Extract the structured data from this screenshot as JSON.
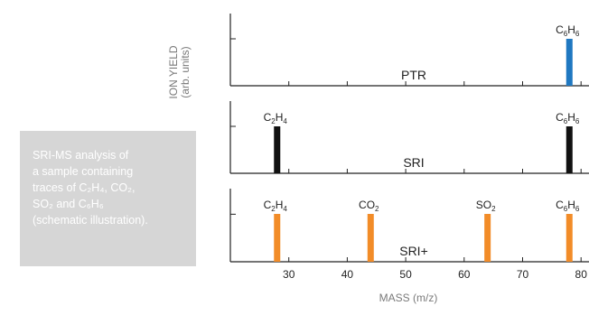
{
  "caption": "SRI-MS analysis of\na sample containing\ntraces of C₂H₄, CO₂,\nSO₂ and C₆H₆\n(schematic illustration).",
  "ylabel_line1": "ION YIELD",
  "ylabel_line2": "(arb. units)",
  "xlabel": "MASS (m/z)",
  "chart_data": {
    "type": "bar",
    "xlabel": "MASS (m/z)",
    "ylabel": "ION YIELD (arb. units)",
    "xlim": [
      20,
      80
    ],
    "x_ticks": [
      30,
      40,
      50,
      60,
      70,
      80
    ],
    "panels": [
      {
        "name": "PTR",
        "color": "#1f78c1",
        "bars": [
          {
            "mass": 78,
            "value": 1,
            "label": "C6H6"
          }
        ]
      },
      {
        "name": "SRI",
        "color": "#111111",
        "bars": [
          {
            "mass": 28,
            "value": 1,
            "label": "C2H4"
          },
          {
            "mass": 78,
            "value": 1,
            "label": "C6H6"
          }
        ]
      },
      {
        "name": "SRI+",
        "color": "#f28c28",
        "bars": [
          {
            "mass": 28,
            "value": 1,
            "label": "C2H4"
          },
          {
            "mass": 44,
            "value": 1,
            "label": "CO2"
          },
          {
            "mass": 64,
            "value": 1,
            "label": "SO2"
          },
          {
            "mass": 78,
            "value": 1,
            "label": "C6H6"
          }
        ]
      }
    ]
  }
}
